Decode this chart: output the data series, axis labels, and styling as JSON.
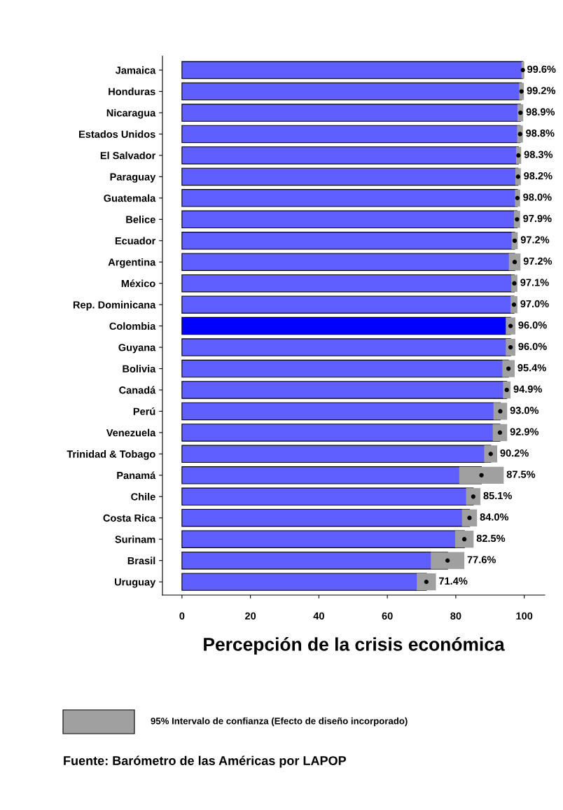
{
  "chart_data": {
    "type": "bar",
    "orientation": "horizontal",
    "xlabel": "Percepción de la crisis económica",
    "categories": [
      "Jamaica",
      "Honduras",
      "Nicaragua",
      "Estados Unidos",
      "El Salvador",
      "Paraguay",
      "Guatemala",
      "Belice",
      "Ecuador",
      "Argentina",
      "México",
      "Rep. Dominicana",
      "Colombia",
      "Guyana",
      "Bolivia",
      "Canadá",
      "Perú",
      "Venezuela",
      "Trinidad & Tobago",
      "Panamá",
      "Chile",
      "Costa Rica",
      "Surinam",
      "Brasil",
      "Uruguay"
    ],
    "series": [
      {
        "values": [
          99.6,
          99.2,
          98.9,
          98.8,
          98.3,
          98.2,
          98.0,
          97.9,
          97.2,
          97.2,
          97.1,
          97.0,
          96.0,
          96.0,
          95.4,
          94.9,
          93.0,
          92.9,
          90.2,
          87.5,
          85.1,
          84.0,
          82.5,
          77.6,
          71.4
        ],
        "errors": [
          [
            99.2,
            100.0
          ],
          [
            98.5,
            99.9
          ],
          [
            98.0,
            99.7
          ],
          [
            97.9,
            99.6
          ],
          [
            97.6,
            99.1
          ],
          [
            97.4,
            99.0
          ],
          [
            97.3,
            98.8
          ],
          [
            97.0,
            98.8
          ],
          [
            96.3,
            98.1
          ],
          [
            95.5,
            98.9
          ],
          [
            96.2,
            98.0
          ],
          [
            96.0,
            98.0
          ],
          [
            94.6,
            97.4
          ],
          [
            94.6,
            97.4
          ],
          [
            93.6,
            97.2
          ],
          [
            93.8,
            96.0
          ],
          [
            91.0,
            95.0
          ],
          [
            90.8,
            95.0
          ],
          [
            88.3,
            92.1
          ],
          [
            81.0,
            94.0
          ],
          [
            83.0,
            87.2
          ],
          [
            81.8,
            86.2
          ],
          [
            79.8,
            85.2
          ],
          [
            72.7,
            82.5
          ],
          [
            68.6,
            74.2
          ]
        ],
        "value_labels": [
          "99.6%",
          "99.2%",
          "98.9%",
          "98.8%",
          "98.3%",
          "98.2%",
          "98.0%",
          "97.9%",
          "97.2%",
          "97.2%",
          "97.1%",
          "97.0%",
          "96.0%",
          "96.0%",
          "95.4%",
          "94.9%",
          "93.0%",
          "92.9%",
          "90.2%",
          "87.5%",
          "85.1%",
          "84.0%",
          "82.5%",
          "77.6%",
          "71.4%"
        ],
        "colors": [
          "#5f5fff",
          "#5f5fff",
          "#5f5fff",
          "#5f5fff",
          "#5f5fff",
          "#5f5fff",
          "#5f5fff",
          "#5f5fff",
          "#5f5fff",
          "#5f5fff",
          "#5f5fff",
          "#5f5fff",
          "#0000ff",
          "#5f5fff",
          "#5f5fff",
          "#5f5fff",
          "#5f5fff",
          "#5f5fff",
          "#5f5fff",
          "#5f5fff",
          "#5f5fff",
          "#5f5fff",
          "#5f5fff",
          "#5f5fff",
          "#5f5fff"
        ]
      },
      {
        "type": "scatter",
        "color": "#000000",
        "marker": "circle",
        "values": [
          99.6,
          99.2,
          98.9,
          98.8,
          98.3,
          98.2,
          98.0,
          97.9,
          97.2,
          97.2,
          97.1,
          97.0,
          96.0,
          96.0,
          95.4,
          94.9,
          93.0,
          92.9,
          90.2,
          87.5,
          85.1,
          84.0,
          82.5,
          77.6,
          71.4
        ]
      }
    ],
    "xlim": [
      -5.7,
      106
    ],
    "xticks": [
      0,
      20,
      40,
      60,
      80,
      100
    ],
    "grid": false,
    "annotations": [
      "95% Intervalo de confianza (Efecto de diseño incorporado)",
      "Fuente: Barómetro de las Américas por LAPOP"
    ]
  }
}
